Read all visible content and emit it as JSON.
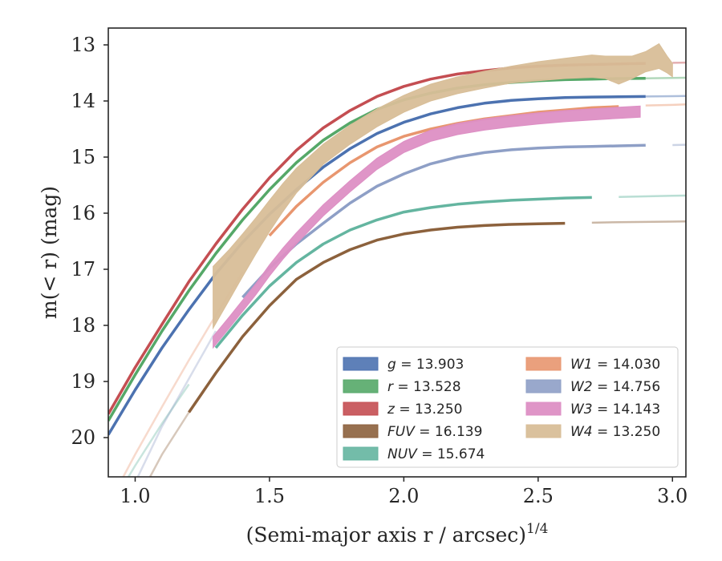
{
  "chart_data": {
    "type": "line",
    "title": "",
    "xlabel": "(Semi-major axis r / arcsec)^{1/4}",
    "ylabel": "m(< r) (mag)",
    "xlim": [
      0.9,
      3.05
    ],
    "ylim": [
      20.7,
      12.7
    ],
    "y_inverted": true,
    "x_ticks": [
      1.0,
      1.5,
      2.0,
      2.5,
      3.0
    ],
    "x_tick_labels": [
      "1.0",
      "1.5",
      "2.0",
      "2.5",
      "3.0"
    ],
    "y_ticks": [
      13,
      14,
      15,
      16,
      17,
      18,
      19,
      20
    ],
    "y_tick_labels": [
      "13",
      "14",
      "15",
      "16",
      "17",
      "18",
      "19",
      "20"
    ],
    "grid": false,
    "legend_position": "lower-right",
    "legend_columns": 2,
    "series": [
      {
        "name": "g = 13.903",
        "var": "g",
        "value": "13.903",
        "color": "#4c72b0",
        "x": [
          0.9,
          1.0,
          1.1,
          1.2,
          1.3,
          1.4,
          1.5,
          1.6,
          1.7,
          1.8,
          1.9,
          2.0,
          2.1,
          2.2,
          2.3,
          2.4,
          2.5,
          2.6,
          2.7,
          2.8,
          2.9,
          3.0,
          3.05
        ],
        "y": [
          19.95,
          19.15,
          18.4,
          17.72,
          17.08,
          16.52,
          16.02,
          15.58,
          15.18,
          14.85,
          14.58,
          14.38,
          14.23,
          14.12,
          14.04,
          13.99,
          13.96,
          13.94,
          13.93,
          13.925,
          13.92,
          13.915,
          13.91
        ],
        "faded_from_x": 2.9,
        "band": false
      },
      {
        "name": "r = 13.528",
        "var": "r",
        "value": "13.528",
        "color": "#55a868",
        "x": [
          0.9,
          1.0,
          1.1,
          1.2,
          1.3,
          1.4,
          1.5,
          1.6,
          1.7,
          1.8,
          1.9,
          2.0,
          2.1,
          2.2,
          2.3,
          2.4,
          2.5,
          2.6,
          2.7,
          2.8,
          2.9,
          3.0,
          3.05
        ],
        "y": [
          19.7,
          18.88,
          18.1,
          17.38,
          16.72,
          16.12,
          15.58,
          15.1,
          14.7,
          14.39,
          14.15,
          13.98,
          13.86,
          13.77,
          13.71,
          13.67,
          13.64,
          13.62,
          13.61,
          13.6,
          13.595,
          13.59,
          13.585
        ],
        "faded_from_x": 2.9,
        "band": false
      },
      {
        "name": "z = 13.250",
        "var": "z",
        "value": "13.250",
        "color": "#c44e52",
        "x": [
          0.9,
          1.0,
          1.1,
          1.2,
          1.3,
          1.4,
          1.5,
          1.6,
          1.7,
          1.8,
          1.9,
          2.0,
          2.1,
          2.2,
          2.3,
          2.4,
          2.5,
          2.6,
          2.7,
          2.8,
          2.9,
          3.0,
          3.05
        ],
        "y": [
          19.58,
          18.75,
          17.98,
          17.22,
          16.55,
          15.93,
          15.37,
          14.88,
          14.48,
          14.17,
          13.92,
          13.74,
          13.61,
          13.52,
          13.46,
          13.41,
          13.38,
          13.36,
          13.35,
          13.34,
          13.33,
          13.32,
          13.315
        ],
        "faded_from_x": 2.95,
        "band": false
      },
      {
        "name": "FUV = 16.139",
        "var": "FUV",
        "value": "16.139",
        "color": "#8c613c",
        "x": [
          1.05,
          1.1,
          1.2,
          1.3,
          1.4,
          1.5,
          1.6,
          1.7,
          1.8,
          1.9,
          2.0,
          2.1,
          2.2,
          2.3,
          2.4,
          2.5,
          2.6,
          2.7,
          2.8,
          2.9,
          3.0,
          3.05
        ],
        "y": [
          20.75,
          20.3,
          19.55,
          18.85,
          18.2,
          17.65,
          17.18,
          16.88,
          16.65,
          16.48,
          16.37,
          16.3,
          16.25,
          16.22,
          16.2,
          16.19,
          16.18,
          16.17,
          16.16,
          16.155,
          16.15,
          16.145
        ],
        "faded_before_x": 1.2,
        "faded_from_x": 2.63,
        "band": false
      },
      {
        "name": "NUV = 15.674",
        "var": "NUV",
        "value": "15.674",
        "color": "#64b5a0",
        "x": [
          0.95,
          1.0,
          1.1,
          1.2,
          1.3,
          1.4,
          1.5,
          1.6,
          1.7,
          1.8,
          1.9,
          2.0,
          2.1,
          2.2,
          2.3,
          2.4,
          2.5,
          2.6,
          2.7,
          2.8,
          2.9,
          3.0,
          3.05
        ],
        "y": [
          20.9,
          20.5,
          19.75,
          19.05,
          18.4,
          17.82,
          17.3,
          16.88,
          16.55,
          16.3,
          16.12,
          15.98,
          15.9,
          15.84,
          15.8,
          15.77,
          15.75,
          15.73,
          15.72,
          15.71,
          15.7,
          15.69,
          15.685
        ],
        "faded_before_x": 1.22,
        "faded_from_x": 2.78,
        "band": false
      },
      {
        "name": "W1 = 14.030",
        "var": "W1",
        "value": "14.030",
        "color": "#e8966f",
        "x": [
          0.9,
          1.0,
          1.1,
          1.2,
          1.3,
          1.4,
          1.5,
          1.6,
          1.7,
          1.8,
          1.9,
          2.0,
          2.1,
          2.2,
          2.3,
          2.4,
          2.5,
          2.6,
          2.7,
          2.8,
          2.9,
          3.0,
          3.05
        ],
        "y": [
          21.2,
          20.3,
          19.45,
          18.62,
          17.82,
          17.05,
          16.4,
          15.88,
          15.45,
          15.1,
          14.82,
          14.63,
          14.5,
          14.4,
          14.32,
          14.26,
          14.2,
          14.16,
          14.12,
          14.1,
          14.08,
          14.07,
          14.06
        ],
        "faded_before_x": 1.45,
        "faded_from_x": 2.86,
        "band": false
      },
      {
        "name": "W2 = 14.756",
        "var": "W2",
        "value": "14.756",
        "color": "#8e9fc6",
        "x": [
          0.9,
          1.0,
          1.1,
          1.2,
          1.3,
          1.4,
          1.5,
          1.6,
          1.7,
          1.8,
          1.9,
          2.0,
          2.1,
          2.2,
          2.3,
          2.4,
          2.5,
          2.6,
          2.7,
          2.8,
          2.9,
          3.0,
          3.05
        ],
        "y": [
          21.8,
          20.8,
          19.8,
          18.95,
          18.1,
          17.5,
          16.98,
          16.55,
          16.18,
          15.82,
          15.52,
          15.3,
          15.12,
          15.0,
          14.92,
          14.87,
          14.84,
          14.82,
          14.81,
          14.8,
          14.79,
          14.785,
          14.78
        ],
        "faded_before_x": 1.36,
        "faded_from_x": 2.95,
        "band": false
      },
      {
        "name": "W3 = 14.143",
        "var": "W3",
        "value": "14.143",
        "color": "#dd8fc4",
        "x": [
          1.29,
          1.35,
          1.4,
          1.45,
          1.5,
          1.55,
          1.6,
          1.7,
          1.8,
          1.9,
          2.0,
          2.1,
          2.2,
          2.3,
          2.4,
          2.5,
          2.6,
          2.7,
          2.8,
          2.88
        ],
        "y": [
          18.3,
          17.95,
          17.65,
          17.35,
          17.02,
          16.72,
          16.45,
          15.95,
          15.52,
          15.12,
          14.82,
          14.62,
          14.5,
          14.42,
          14.36,
          14.31,
          14.27,
          14.24,
          14.21,
          14.19
        ],
        "y_err": 0.1,
        "band": true
      },
      {
        "name": "W4 = 13.250",
        "var": "W4",
        "value": "13.250",
        "color": "#d8be98",
        "x": [
          1.29,
          1.35,
          1.4,
          1.45,
          1.5,
          1.55,
          1.6,
          1.7,
          1.8,
          1.9,
          2.0,
          2.1,
          2.2,
          2.3,
          2.4,
          2.5,
          2.6,
          2.7,
          2.75,
          2.8,
          2.85,
          2.9,
          2.95,
          2.98,
          3.0
        ],
        "y": [
          17.5,
          17.1,
          16.75,
          16.4,
          16.05,
          15.72,
          15.42,
          14.95,
          14.6,
          14.3,
          14.05,
          13.85,
          13.72,
          13.62,
          13.53,
          13.47,
          13.42,
          13.38,
          13.4,
          13.45,
          13.4,
          13.3,
          13.2,
          13.35,
          13.45
        ],
        "y_err": [
          0.55,
          0.45,
          0.38,
          0.32,
          0.28,
          0.25,
          0.22,
          0.18,
          0.17,
          0.16,
          0.15,
          0.15,
          0.15,
          0.15,
          0.15,
          0.17,
          0.18,
          0.2,
          0.2,
          0.25,
          0.2,
          0.18,
          0.22,
          0.15,
          0.12
        ],
        "band": true
      }
    ]
  }
}
